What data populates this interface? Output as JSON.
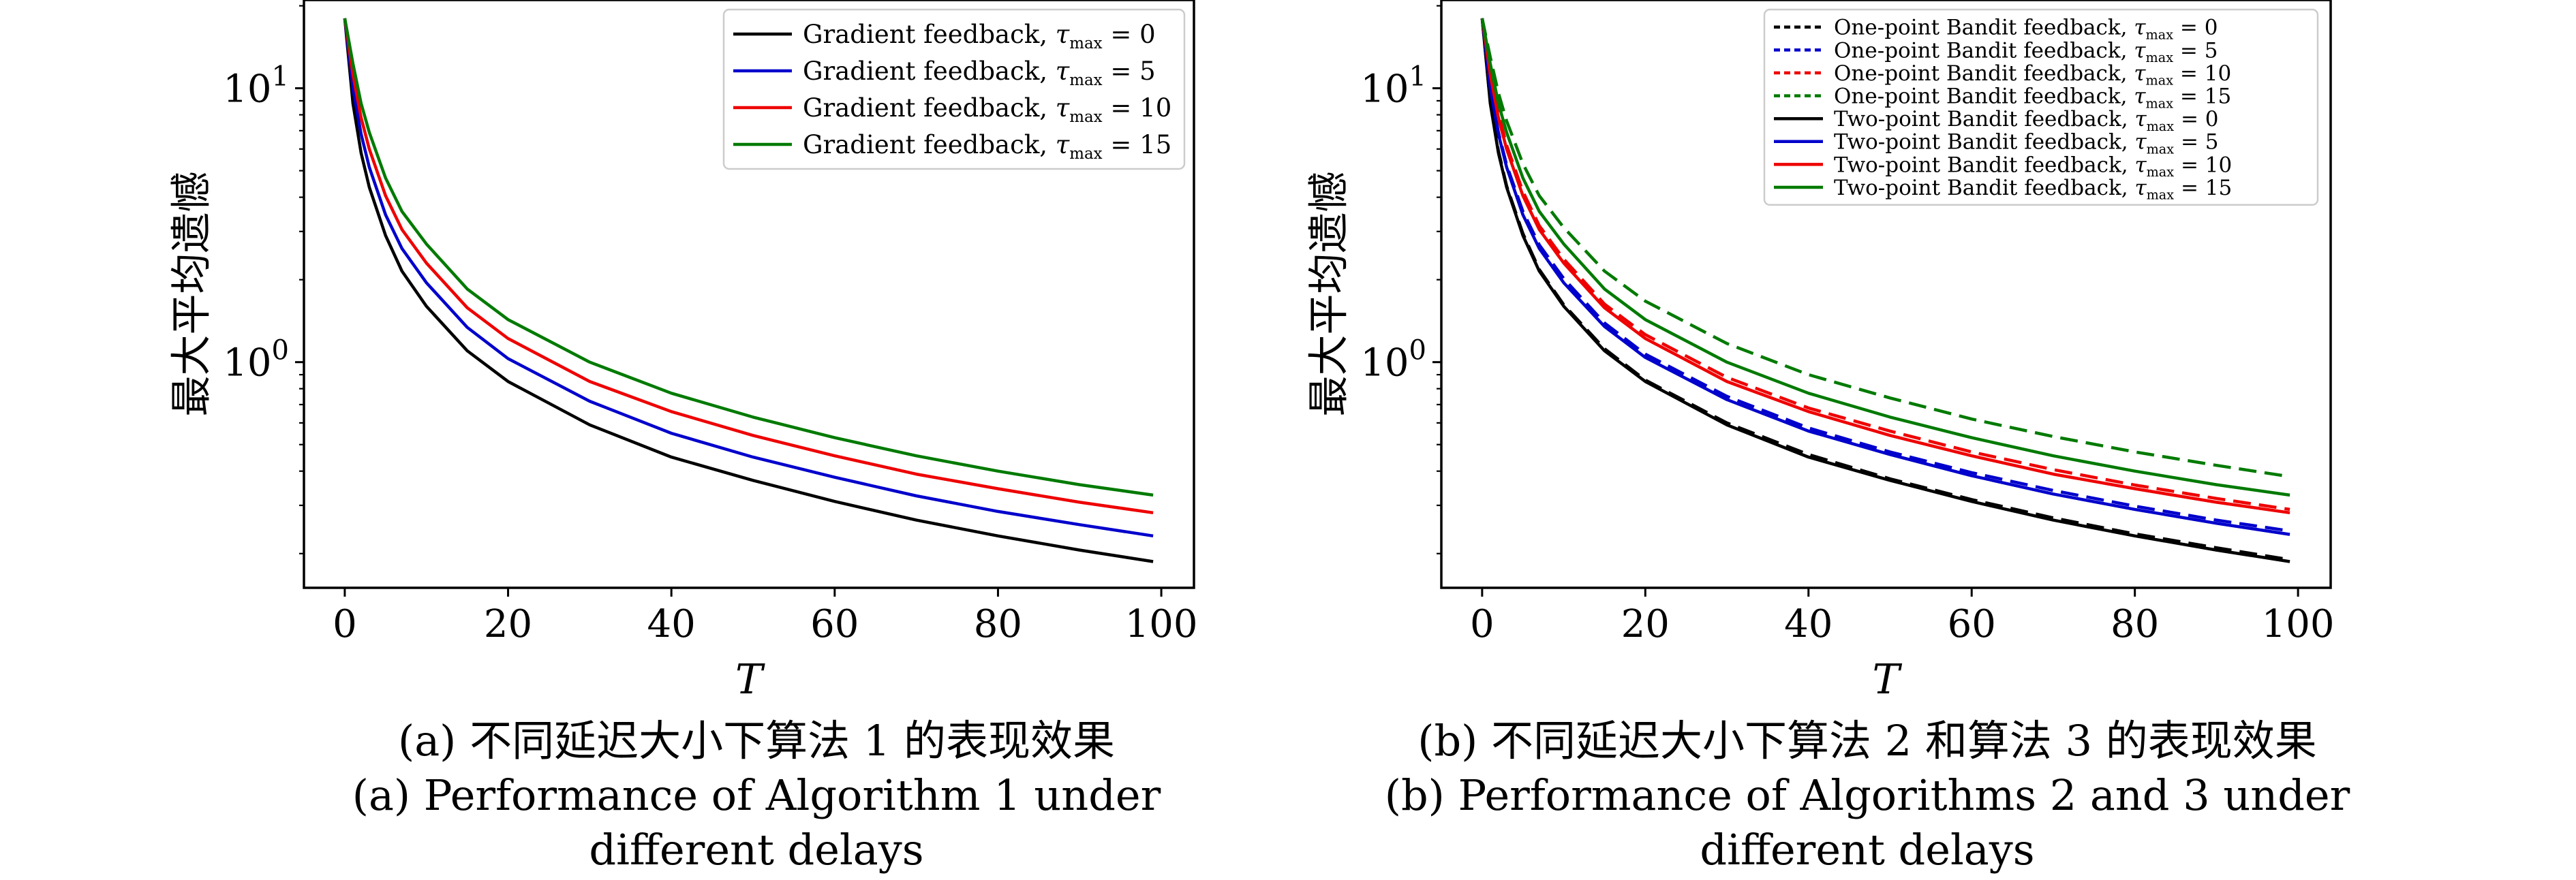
{
  "figure": {
    "panels": [
      {
        "id": "a",
        "ylabel": "最大平均遗憾",
        "xlabel": "T",
        "caption_zh": "(a) 不同延迟大小下算法 1 的表现效果",
        "caption_en_line1": "(a) Performance of Algorithm 1 under",
        "caption_en_line2": "different delays"
      },
      {
        "id": "b",
        "ylabel": "最大平均遗憾",
        "xlabel": "T",
        "caption_zh": "(b) 不同延迟大小下算法 2 和算法 3 的表现效果",
        "caption_en_line1": "(b) Performance of Algorithms 2 and 3 under",
        "caption_en_line2": "different delays"
      }
    ]
  },
  "chart_data": [
    {
      "type": "line",
      "xlabel": "T",
      "ylabel": "最大平均遗憾",
      "xlim": [
        -5,
        104
      ],
      "ylim": [
        0.15,
        21
      ],
      "yscale": "log",
      "xticks": [
        "0",
        "20",
        "40",
        "60",
        "80",
        "100"
      ],
      "yticks": [
        {
          "value": 1,
          "label": "10^0"
        },
        {
          "value": 10,
          "label": "10^1"
        }
      ],
      "grid": false,
      "legend_position": "top-right",
      "series": [
        {
          "name": "Gradient feedback, τ_max = 0",
          "name_main": "Gradient feedback,",
          "tau": "0",
          "color": "#000000",
          "dash": "solid",
          "x": [
            0,
            1,
            2,
            3,
            5,
            7,
            10,
            15,
            20,
            30,
            40,
            50,
            60,
            70,
            80,
            90,
            99
          ],
          "y": [
            18.0,
            8.8,
            5.8,
            4.35,
            2.9,
            2.15,
            1.6,
            1.1,
            0.85,
            0.59,
            0.45,
            0.37,
            0.31,
            0.265,
            0.232,
            0.206,
            0.187
          ]
        },
        {
          "name": "Gradient feedback, τ_max = 5",
          "name_main": "Gradient feedback,",
          "tau": "5",
          "color": "#0000cc",
          "dash": "solid",
          "x": [
            0,
            1,
            2,
            3,
            5,
            7,
            10,
            15,
            20,
            30,
            40,
            50,
            60,
            70,
            80,
            90,
            99
          ],
          "y": [
            18.0,
            10.0,
            6.8,
            5.15,
            3.45,
            2.6,
            1.95,
            1.34,
            1.03,
            0.72,
            0.55,
            0.45,
            0.38,
            0.325,
            0.285,
            0.255,
            0.232
          ]
        },
        {
          "name": "Gradient feedback, τ_max = 10",
          "name_main": "Gradient feedback,",
          "tau": "10",
          "color": "#ee0000",
          "dash": "solid",
          "x": [
            0,
            1,
            2,
            3,
            5,
            7,
            10,
            15,
            20,
            30,
            40,
            50,
            60,
            70,
            80,
            90,
            99
          ],
          "y": [
            18.0,
            11.2,
            7.8,
            6.0,
            4.05,
            3.05,
            2.3,
            1.58,
            1.22,
            0.85,
            0.66,
            0.54,
            0.455,
            0.39,
            0.345,
            0.308,
            0.282
          ]
        },
        {
          "name": "Gradient feedback, τ_max = 15",
          "name_main": "Gradient feedback,",
          "tau": "15",
          "color": "#007a00",
          "dash": "solid",
          "x": [
            0,
            1,
            2,
            3,
            5,
            7,
            10,
            15,
            20,
            30,
            40,
            50,
            60,
            70,
            80,
            90,
            99
          ],
          "y": [
            18.0,
            12.3,
            8.8,
            6.9,
            4.7,
            3.55,
            2.7,
            1.85,
            1.43,
            1.0,
            0.77,
            0.63,
            0.53,
            0.455,
            0.4,
            0.357,
            0.327
          ]
        }
      ]
    },
    {
      "type": "line",
      "xlabel": "T",
      "ylabel": "最大平均遗憾",
      "xlim": [
        -5,
        104
      ],
      "ylim": [
        0.15,
        21
      ],
      "yscale": "log",
      "xticks": [
        "0",
        "20",
        "40",
        "60",
        "80",
        "100"
      ],
      "yticks": [
        {
          "value": 1,
          "label": "10^0"
        },
        {
          "value": 10,
          "label": "10^1"
        }
      ],
      "grid": false,
      "legend_position": "top-right",
      "series": [
        {
          "name": "One-point Bandit feedback, τ_max = 0",
          "name_main": "One-point Bandit feedback,",
          "tau": "0",
          "color": "#000000",
          "dash": "dashed",
          "x": [
            0,
            1,
            2,
            3,
            5,
            7,
            10,
            15,
            20,
            30,
            40,
            50,
            60,
            70,
            80,
            90,
            99
          ],
          "y": [
            18.0,
            8.9,
            5.9,
            4.4,
            2.95,
            2.18,
            1.62,
            1.12,
            0.86,
            0.6,
            0.46,
            0.375,
            0.315,
            0.27,
            0.236,
            0.21,
            0.19
          ]
        },
        {
          "name": "One-point Bandit feedback, τ_max = 5",
          "name_main": "One-point Bandit feedback,",
          "tau": "5",
          "color": "#0000cc",
          "dash": "dashed",
          "x": [
            0,
            1,
            2,
            3,
            5,
            7,
            10,
            15,
            20,
            30,
            40,
            50,
            60,
            70,
            80,
            90,
            99
          ],
          "y": [
            18.0,
            10.0,
            6.9,
            5.25,
            3.55,
            2.68,
            2.02,
            1.39,
            1.07,
            0.75,
            0.575,
            0.47,
            0.395,
            0.34,
            0.298,
            0.265,
            0.242
          ]
        },
        {
          "name": "One-point Bandit feedback, τ_max = 10",
          "name_main": "One-point Bandit feedback,",
          "tau": "10",
          "color": "#ee0000",
          "dash": "dashed",
          "x": [
            0,
            1,
            2,
            3,
            5,
            7,
            10,
            15,
            20,
            30,
            40,
            50,
            60,
            70,
            80,
            90,
            99
          ],
          "y": [
            18.0,
            11.5,
            8.1,
            6.2,
            4.2,
            3.15,
            2.38,
            1.63,
            1.26,
            0.88,
            0.68,
            0.56,
            0.47,
            0.405,
            0.356,
            0.318,
            0.29
          ]
        },
        {
          "name": "One-point Bandit feedback, τ_max = 15",
          "name_main": "One-point Bandit feedback,",
          "tau": "15",
          "color": "#007a00",
          "dash": "dashed",
          "x": [
            0,
            1,
            2,
            3,
            5,
            7,
            10,
            15,
            20,
            30,
            40,
            50,
            60,
            70,
            80,
            90,
            99
          ],
          "y": [
            18.0,
            13.0,
            9.6,
            7.6,
            5.3,
            4.05,
            3.1,
            2.15,
            1.67,
            1.17,
            0.9,
            0.74,
            0.62,
            0.535,
            0.47,
            0.42,
            0.382
          ]
        },
        {
          "name": "Two-point Bandit feedback, τ_max = 0",
          "name_main": "Two-point Bandit feedback,",
          "tau": "0",
          "color": "#000000",
          "dash": "solid",
          "x": [
            0,
            1,
            2,
            3,
            5,
            7,
            10,
            15,
            20,
            30,
            40,
            50,
            60,
            70,
            80,
            90,
            99
          ],
          "y": [
            18.0,
            8.8,
            5.8,
            4.35,
            2.9,
            2.15,
            1.6,
            1.1,
            0.85,
            0.59,
            0.45,
            0.37,
            0.31,
            0.265,
            0.232,
            0.206,
            0.187
          ]
        },
        {
          "name": "Two-point Bandit feedback, τ_max = 5",
          "name_main": "Two-point Bandit feedback,",
          "tau": "5",
          "color": "#0000cc",
          "dash": "solid",
          "x": [
            0,
            1,
            2,
            3,
            5,
            7,
            10,
            15,
            20,
            30,
            40,
            50,
            60,
            70,
            80,
            90,
            99
          ],
          "y": [
            18.0,
            10.0,
            6.8,
            5.15,
            3.45,
            2.6,
            1.95,
            1.35,
            1.04,
            0.73,
            0.56,
            0.46,
            0.385,
            0.33,
            0.29,
            0.258,
            0.235
          ]
        },
        {
          "name": "Two-point Bandit feedback, τ_max = 10",
          "name_main": "Two-point Bandit feedback,",
          "tau": "10",
          "color": "#ee0000",
          "dash": "solid",
          "x": [
            0,
            1,
            2,
            3,
            5,
            7,
            10,
            15,
            20,
            30,
            40,
            50,
            60,
            70,
            80,
            90,
            99
          ],
          "y": [
            18.0,
            11.2,
            7.8,
            6.0,
            4.05,
            3.05,
            2.3,
            1.58,
            1.22,
            0.85,
            0.66,
            0.54,
            0.455,
            0.39,
            0.345,
            0.308,
            0.282
          ]
        },
        {
          "name": "Two-point Bandit feedback, τ_max = 15",
          "name_main": "Two-point Bandit feedback,",
          "tau": "15",
          "color": "#007a00",
          "dash": "solid",
          "x": [
            0,
            1,
            2,
            3,
            5,
            7,
            10,
            15,
            20,
            30,
            40,
            50,
            60,
            70,
            80,
            90,
            99
          ],
          "y": [
            18.0,
            12.3,
            8.8,
            6.9,
            4.7,
            3.55,
            2.7,
            1.85,
            1.43,
            1.0,
            0.77,
            0.63,
            0.53,
            0.455,
            0.4,
            0.357,
            0.327
          ]
        }
      ]
    }
  ]
}
